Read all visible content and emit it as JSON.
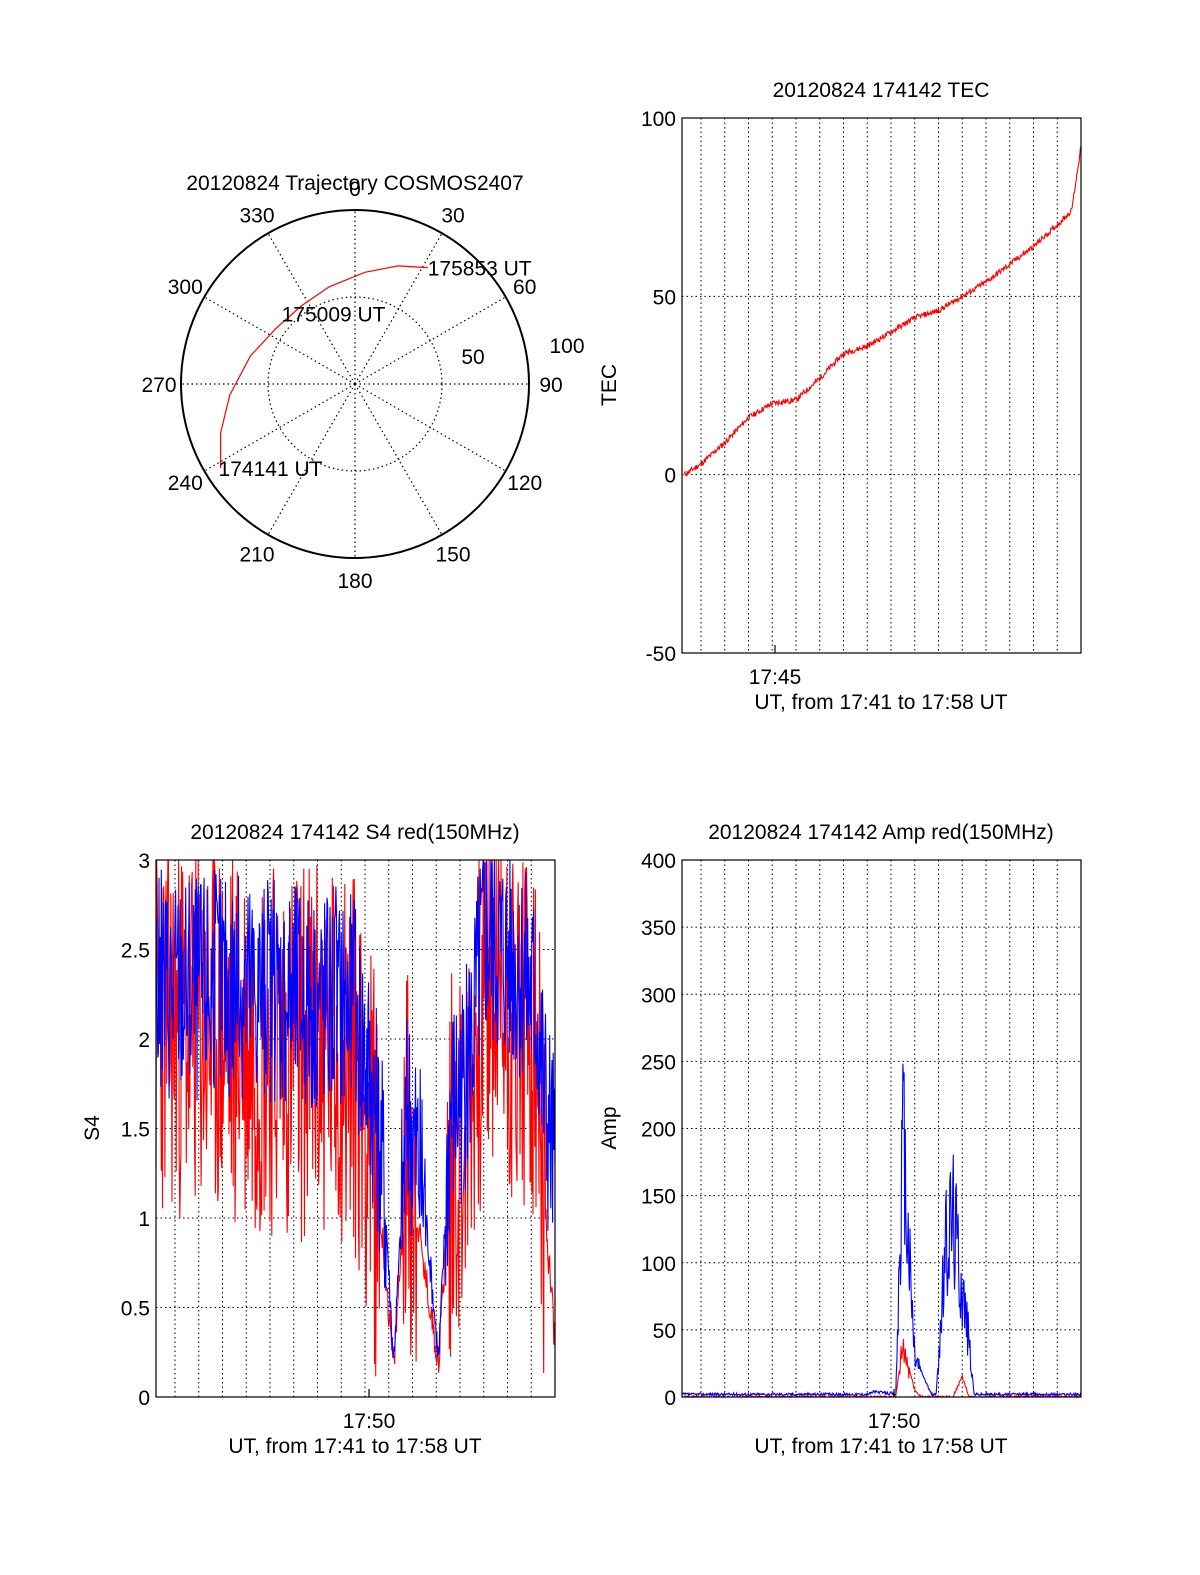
{
  "colors": {
    "red": "#ff0000",
    "blue": "#0000ff",
    "frame": "#000000",
    "grid": "#000000"
  },
  "chart_data": [
    {
      "type": "polar",
      "title": "20120824 Trajectory COSMOS2407",
      "azimuth_labels": [
        "0",
        "30",
        "60",
        "90",
        "120",
        "150",
        "180",
        "210",
        "240",
        "270",
        "300",
        "330"
      ],
      "radial_labels": [
        "50",
        "100"
      ],
      "grid": true,
      "trajectory": {
        "points": [
          {
            "az": 238,
            "el": 8
          },
          {
            "az": 250,
            "el": 16
          },
          {
            "az": 265,
            "el": 25
          },
          {
            "az": 285,
            "el": 34
          },
          {
            "az": 305,
            "el": 40
          },
          {
            "az": 325,
            "el": 41
          },
          {
            "az": 345,
            "el": 38
          },
          {
            "az": 5,
            "el": 32
          },
          {
            "az": 20,
            "el": 25
          },
          {
            "az": 32,
            "el": 19
          }
        ],
        "annotations": [
          {
            "text": "174141 UT",
            "az": 238,
            "el": 8
          },
          {
            "text": "175009 UT",
            "az": 318,
            "el": 41
          },
          {
            "text": "175853 UT",
            "az": 32,
            "el": 19
          }
        ]
      }
    },
    {
      "type": "line",
      "title": "20120824 174142 TEC",
      "xlabel": "UT, from 17:41 to 17:58 UT",
      "ylabel": "TEC",
      "ylim": [
        -50,
        100
      ],
      "yticks": [
        "100",
        "50",
        "0",
        "-50"
      ],
      "xtick_label": "17:45",
      "grid": true,
      "series": [
        {
          "color": "red",
          "x_min": [
            41.3,
            42,
            43,
            44,
            45,
            46,
            47,
            48,
            49,
            50,
            51,
            52,
            53,
            54,
            55,
            56,
            57,
            57.6,
            58
          ],
          "values": [
            0,
            3,
            9,
            16,
            20,
            21,
            27,
            34,
            36,
            40,
            44,
            46,
            50,
            54,
            59,
            64,
            70,
            74,
            92
          ]
        }
      ]
    },
    {
      "type": "line",
      "title": "20120824 174142 S4 red(150MHz)",
      "xlabel": "UT, from 17:41 to 17:58 UT",
      "ylabel": "S4",
      "ylim": [
        0,
        3
      ],
      "yticks": [
        "3",
        "2.5",
        "2",
        "1.5",
        "1",
        "0.5",
        "0"
      ],
      "xtick_label": "17:50",
      "grid": true,
      "series": [
        {
          "color": "red",
          "x_min": [
            41.2,
            45,
            49.5,
            50.2,
            50.8,
            51.2,
            51.8,
            52.5,
            53.1,
            53.6,
            54.3,
            55,
            55.6,
            56.5,
            57.2,
            57.6,
            58
          ],
          "values": [
            2.1,
            2.0,
            1.9,
            1.5,
            0.8,
            0.15,
            1.4,
            0.7,
            0.2,
            1.3,
            1.5,
            2.3,
            2.2,
            2.1,
            1.8,
            1.0,
            0.3
          ]
        },
        {
          "color": "blue",
          "x_min": [
            41.2,
            45,
            49.5,
            50.2,
            50.8,
            51.2,
            51.8,
            52.5,
            53.1,
            53.6,
            54.3,
            55,
            55.6,
            56.5,
            57.2,
            57.6,
            58
          ],
          "values": [
            2.3,
            2.3,
            2.2,
            1.8,
            1.2,
            0.2,
            1.6,
            1.1,
            0.2,
            1.6,
            1.8,
            2.6,
            2.5,
            2.4,
            2.2,
            1.6,
            1.3
          ]
        }
      ]
    },
    {
      "type": "line",
      "title": "20120824 174142 Amp red(150MHz)",
      "xlabel": "UT, from 17:41 to 17:58 UT",
      "ylabel": "Amp",
      "ylim": [
        0,
        400
      ],
      "yticks": [
        "400",
        "350",
        "300",
        "250",
        "200",
        "150",
        "100",
        "50",
        "0"
      ],
      "xtick_label": "17:50",
      "grid": true,
      "series": [
        {
          "color": "blue",
          "x_min": [
            41.2,
            49,
            49.3,
            50.2,
            50.5,
            51,
            51.7,
            51.9,
            52.3,
            52.6,
            53.3,
            53.5,
            58
          ],
          "values": [
            2,
            2,
            4,
            2,
            190,
            30,
            2,
            2,
            110,
            140,
            40,
            2,
            2
          ]
        },
        {
          "color": "red",
          "x_min": [
            41.2,
            50.2,
            50.5,
            51,
            51.3,
            52.6,
            53,
            53.3,
            58
          ],
          "values": [
            0,
            0,
            40,
            5,
            0,
            0,
            15,
            0,
            0
          ]
        }
      ]
    }
  ]
}
